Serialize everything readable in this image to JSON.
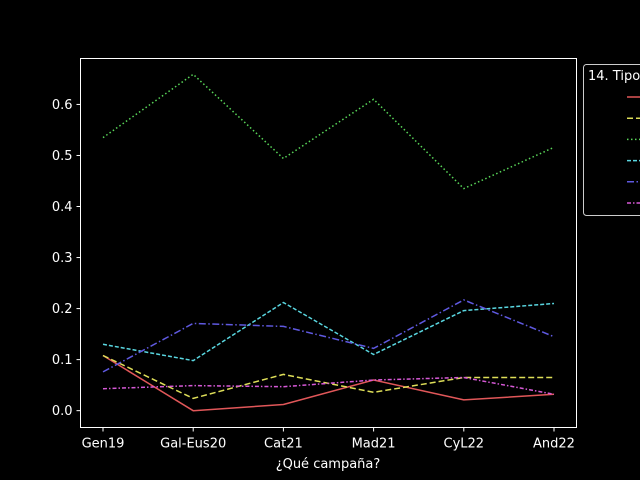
{
  "chart_data": {
    "type": "line",
    "title": "",
    "xlabel": "¿Qué campaña?",
    "ylabel": "",
    "categories": [
      "Gen19",
      "Gal-Eus20",
      "Cat21",
      "Mad21",
      "CyL22",
      "And22"
    ],
    "ylim": [
      -0.033,
      0.69
    ],
    "yticks": [
      "0.0",
      "0.1",
      "0.2",
      "0.3",
      "0.4",
      "0.5",
      "0.6"
    ],
    "grid": false,
    "legend": {
      "title": "14. Tipo",
      "placement": "right"
    },
    "series": [
      {
        "values": [
          0.108,
          0.0,
          0.012,
          0.06,
          0.021,
          0.032
        ],
        "color": "#e15759",
        "dash": "solid"
      },
      {
        "values": [
          0.108,
          0.024,
          0.071,
          0.036,
          0.065,
          0.065
        ],
        "color": "#dede58",
        "dash": "dashed"
      },
      {
        "values": [
          0.535,
          0.659,
          0.494,
          0.61,
          0.435,
          0.516
        ],
        "color": "#59d659",
        "dash": "dotted"
      },
      {
        "values": [
          0.13,
          0.098,
          0.212,
          0.11,
          0.196,
          0.21
        ],
        "color": "#59d6e0",
        "dash": "dashed-short"
      },
      {
        "values": [
          0.076,
          0.171,
          0.165,
          0.122,
          0.217,
          0.145
        ],
        "color": "#5f59e0",
        "dash": "dashdot"
      },
      {
        "values": [
          0.043,
          0.049,
          0.047,
          0.06,
          0.065,
          0.032
        ],
        "color": "#d659d6",
        "dash": "dashdot-short"
      }
    ]
  }
}
